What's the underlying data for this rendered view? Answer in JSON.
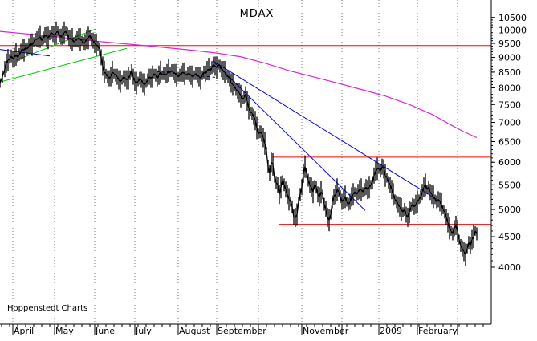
{
  "chart_data": {
    "type": "line",
    "title": "MDAX",
    "credit": "Hoppenstedt Charts",
    "yscale": "log",
    "ylim": [
      3850,
      10900
    ],
    "y_ticks": [
      {
        "v": 10500,
        "label": "10500"
      },
      {
        "v": 10000,
        "label": "10000"
      },
      {
        "v": 9500,
        "label": "9500"
      },
      {
        "v": 9000,
        "label": "9000"
      },
      {
        "v": 8500,
        "label": "8500"
      },
      {
        "v": 8000,
        "label": "8000"
      },
      {
        "v": 7500,
        "label": "7500"
      },
      {
        "v": 7000,
        "label": "7000"
      },
      {
        "v": 6500,
        "label": "6500"
      },
      {
        "v": 6000,
        "label": "6000"
      },
      {
        "v": 5500,
        "label": "5500"
      },
      {
        "v": 5000,
        "label": "5000"
      },
      {
        "v": 4500,
        "label": "4500"
      },
      {
        "v": 4000,
        "label": "4000"
      }
    ],
    "x_months": [
      "April",
      "May",
      "June",
      "July",
      "August",
      "September",
      "",
      "November",
      "",
      "2009",
      "February",
      ""
    ],
    "grid": true,
    "price_series": {
      "name": "",
      "color": "#000000",
      "points": [
        [
          0,
          8150
        ],
        [
          3,
          8350
        ],
        [
          6,
          8600
        ],
        [
          8,
          8800
        ],
        [
          10,
          8900
        ],
        [
          12,
          8950
        ],
        [
          14,
          9050
        ],
        [
          16,
          8950
        ],
        [
          18,
          9000
        ],
        [
          20,
          9100
        ],
        [
          22,
          9000
        ],
        [
          24,
          9100
        ],
        [
          26,
          9200
        ],
        [
          28,
          9300
        ],
        [
          30,
          9250
        ],
        [
          32,
          9350
        ],
        [
          34,
          9300
        ],
        [
          36,
          9400
        ],
        [
          38,
          9500
        ],
        [
          40,
          9450
        ],
        [
          42,
          9550
        ],
        [
          44,
          9650
        ],
        [
          46,
          9650
        ],
        [
          48,
          9700
        ],
        [
          50,
          9750
        ],
        [
          52,
          9600
        ],
        [
          54,
          9700
        ],
        [
          56,
          9800
        ],
        [
          58,
          9750
        ],
        [
          60,
          9700
        ],
        [
          62,
          9800
        ],
        [
          64,
          9900
        ],
        [
          66,
          9850
        ],
        [
          68,
          9800
        ],
        [
          70,
          9900
        ],
        [
          72,
          9950
        ],
        [
          74,
          9800
        ],
        [
          76,
          9750
        ],
        [
          78,
          9800
        ],
        [
          80,
          9900
        ],
        [
          82,
          9950
        ],
        [
          84,
          9850
        ],
        [
          86,
          9700
        ],
        [
          88,
          9650
        ],
        [
          90,
          9650
        ],
        [
          92,
          9550
        ],
        [
          94,
          9600
        ],
        [
          96,
          9650
        ],
        [
          98,
          9700
        ],
        [
          100,
          9650
        ],
        [
          102,
          9600
        ],
        [
          104,
          9500
        ],
        [
          106,
          9550
        ],
        [
          108,
          9650
        ],
        [
          110,
          9700
        ],
        [
          112,
          9800
        ],
        [
          114,
          9650
        ],
        [
          116,
          9600
        ],
        [
          118,
          9500
        ],
        [
          120,
          9450
        ],
        [
          122,
          9400
        ],
        [
          124,
          9300
        ],
        [
          126,
          9000
        ],
        [
          128,
          8700
        ],
        [
          130,
          8500
        ],
        [
          132,
          8450
        ],
        [
          134,
          8350
        ],
        [
          136,
          8300
        ],
        [
          138,
          8350
        ],
        [
          140,
          8500
        ],
        [
          142,
          8450
        ],
        [
          144,
          8400
        ],
        [
          146,
          8350
        ],
        [
          148,
          8250
        ],
        [
          150,
          8200
        ],
        [
          152,
          8250
        ],
        [
          154,
          8350
        ],
        [
          156,
          8300
        ],
        [
          158,
          8250
        ],
        [
          160,
          8300
        ],
        [
          162,
          8400
        ],
        [
          164,
          8550
        ],
        [
          166,
          8350
        ],
        [
          168,
          8200
        ],
        [
          170,
          8150
        ],
        [
          172,
          8200
        ],
        [
          174,
          8300
        ],
        [
          176,
          8250
        ],
        [
          178,
          8150
        ],
        [
          180,
          8100
        ],
        [
          182,
          8150
        ],
        [
          184,
          8250
        ],
        [
          186,
          8350
        ],
        [
          188,
          8300
        ],
        [
          190,
          8350
        ],
        [
          192,
          8450
        ],
        [
          194,
          8400
        ],
        [
          196,
          8300
        ],
        [
          198,
          8400
        ],
        [
          200,
          8500
        ],
        [
          202,
          8400
        ],
        [
          204,
          8450
        ],
        [
          206,
          8400
        ],
        [
          208,
          8450
        ],
        [
          210,
          8550
        ],
        [
          212,
          8500
        ],
        [
          214,
          8550
        ],
        [
          216,
          8500
        ],
        [
          218,
          8450
        ],
        [
          220,
          8400
        ],
        [
          222,
          8350
        ],
        [
          224,
          8400
        ],
        [
          226,
          8450
        ],
        [
          228,
          8500
        ],
        [
          230,
          8450
        ],
        [
          232,
          8400
        ],
        [
          234,
          8450
        ],
        [
          236,
          8450
        ],
        [
          238,
          8400
        ],
        [
          240,
          8350
        ],
        [
          242,
          8400
        ],
        [
          244,
          8450
        ],
        [
          246,
          8400
        ],
        [
          248,
          8350
        ],
        [
          250,
          8300
        ],
        [
          252,
          8400
        ],
        [
          254,
          8500
        ],
        [
          256,
          8450
        ],
        [
          258,
          8550
        ],
        [
          260,
          8600
        ],
        [
          262,
          8550
        ],
        [
          264,
          8650
        ],
        [
          266,
          8750
        ],
        [
          268,
          8700
        ],
        [
          270,
          8650
        ],
        [
          272,
          8750
        ],
        [
          274,
          8700
        ],
        [
          276,
          8600
        ],
        [
          278,
          8550
        ],
        [
          280,
          8500
        ],
        [
          282,
          8400
        ],
        [
          284,
          8350
        ],
        [
          286,
          8300
        ],
        [
          288,
          8150
        ],
        [
          290,
          8100
        ],
        [
          292,
          8050
        ],
        [
          294,
          7950
        ],
        [
          296,
          7900
        ],
        [
          298,
          7850
        ],
        [
          300,
          7750
        ],
        [
          302,
          7650
        ],
        [
          304,
          7700
        ],
        [
          306,
          7800
        ],
        [
          308,
          7600
        ],
        [
          310,
          7400
        ],
        [
          312,
          7300
        ],
        [
          314,
          7250
        ],
        [
          316,
          7150
        ],
        [
          318,
          7050
        ],
        [
          320,
          6850
        ],
        [
          322,
          6700
        ],
        [
          324,
          6750
        ],
        [
          326,
          6700
        ],
        [
          328,
          6600
        ],
        [
          330,
          6450
        ],
        [
          332,
          6250
        ],
        [
          334,
          5900
        ],
        [
          336,
          5750
        ],
        [
          338,
          6000
        ],
        [
          340,
          5950
        ],
        [
          342,
          5650
        ],
        [
          344,
          5550
        ],
        [
          346,
          5500
        ],
        [
          348,
          5300
        ],
        [
          350,
          5450
        ],
        [
          352,
          5600
        ],
        [
          354,
          5500
        ],
        [
          356,
          5400
        ],
        [
          358,
          5300
        ],
        [
          360,
          5200
        ],
        [
          362,
          5150
        ],
        [
          364,
          5050
        ],
        [
          366,
          4850
        ],
        [
          368,
          4850
        ],
        [
          370,
          4900
        ],
        [
          372,
          5150
        ],
        [
          374,
          5300
        ],
        [
          376,
          5450
        ],
        [
          378,
          5750
        ],
        [
          380,
          5900
        ],
        [
          382,
          5750
        ],
        [
          384,
          5600
        ],
        [
          386,
          5500
        ],
        [
          388,
          5450
        ],
        [
          390,
          5350
        ],
        [
          392,
          5500
        ],
        [
          394,
          5450
        ],
        [
          396,
          5300
        ],
        [
          398,
          5250
        ],
        [
          400,
          5350
        ],
        [
          402,
          5300
        ],
        [
          404,
          5100
        ],
        [
          406,
          5000
        ],
        [
          408,
          4850
        ],
        [
          410,
          4800
        ],
        [
          412,
          4900
        ],
        [
          414,
          5150
        ],
        [
          416,
          5250
        ],
        [
          418,
          5300
        ],
        [
          420,
          5400
        ],
        [
          422,
          5350
        ],
        [
          424,
          5250
        ],
        [
          426,
          5150
        ],
        [
          428,
          5200
        ],
        [
          430,
          5250
        ],
        [
          432,
          5150
        ],
        [
          434,
          5100
        ],
        [
          436,
          5150
        ],
        [
          438,
          5250
        ],
        [
          440,
          5300
        ],
        [
          442,
          5350
        ],
        [
          444,
          5300
        ],
        [
          446,
          5350
        ],
        [
          448,
          5400
        ],
        [
          450,
          5400
        ],
        [
          452,
          5350
        ],
        [
          454,
          5400
        ],
        [
          456,
          5450
        ],
        [
          458,
          5400
        ],
        [
          460,
          5450
        ],
        [
          462,
          5500
        ],
        [
          464,
          5550
        ],
        [
          466,
          5700
        ],
        [
          468,
          5800
        ],
        [
          470,
          5850
        ],
        [
          472,
          5850
        ],
        [
          474,
          5800
        ],
        [
          476,
          5900
        ],
        [
          478,
          5850
        ],
        [
          480,
          5700
        ],
        [
          482,
          5650
        ],
        [
          484,
          5550
        ],
        [
          486,
          5500
        ],
        [
          488,
          5400
        ],
        [
          490,
          5300
        ],
        [
          492,
          5200
        ],
        [
          494,
          5150
        ],
        [
          496,
          5100
        ],
        [
          498,
          5050
        ],
        [
          500,
          5000
        ],
        [
          502,
          4950
        ],
        [
          504,
          5000
        ],
        [
          506,
          4900
        ],
        [
          508,
          4850
        ],
        [
          510,
          4950
        ],
        [
          512,
          5050
        ],
        [
          514,
          5100
        ],
        [
          516,
          5050
        ],
        [
          518,
          5100
        ],
        [
          520,
          5150
        ],
        [
          522,
          5200
        ],
        [
          524,
          5250
        ],
        [
          526,
          5350
        ],
        [
          528,
          5450
        ],
        [
          530,
          5500
        ],
        [
          532,
          5400
        ],
        [
          534,
          5450
        ],
        [
          536,
          5350
        ],
        [
          538,
          5300
        ],
        [
          540,
          5250
        ],
        [
          542,
          5200
        ],
        [
          544,
          5150
        ],
        [
          546,
          5200
        ],
        [
          548,
          5150
        ],
        [
          550,
          5100
        ],
        [
          552,
          5000
        ],
        [
          554,
          4950
        ],
        [
          556,
          4850
        ],
        [
          558,
          4750
        ],
        [
          560,
          4650
        ],
        [
          562,
          4600
        ],
        [
          564,
          4550
        ],
        [
          566,
          4650
        ],
        [
          568,
          4700
        ],
        [
          570,
          4600
        ],
        [
          572,
          4450
        ],
        [
          574,
          4350
        ],
        [
          576,
          4300
        ],
        [
          578,
          4250
        ],
        [
          580,
          4200
        ],
        [
          582,
          4300
        ],
        [
          584,
          4400
        ],
        [
          586,
          4350
        ],
        [
          588,
          4450
        ],
        [
          590,
          4500
        ],
        [
          592,
          4600
        ],
        [
          594,
          4550
        ]
      ]
    },
    "moving_average": {
      "name": "",
      "color": "#e020e0",
      "points": [
        [
          0,
          9950
        ],
        [
          60,
          9780
        ],
        [
          120,
          9580
        ],
        [
          180,
          9420
        ],
        [
          240,
          9250
        ],
        [
          270,
          9150
        ],
        [
          300,
          9020
        ],
        [
          330,
          8800
        ],
        [
          360,
          8550
        ],
        [
          390,
          8350
        ],
        [
          420,
          8150
        ],
        [
          450,
          7950
        ],
        [
          480,
          7750
        ],
        [
          510,
          7500
        ],
        [
          540,
          7200
        ],
        [
          560,
          6950
        ],
        [
          578,
          6750
        ],
        [
          594,
          6600
        ]
      ]
    },
    "horizontal_lines": [
      {
        "name": "",
        "color": "#ff0000",
        "y": 9420,
        "x_from": 0,
        "x_to": 669
      },
      {
        "name": "",
        "color": "#ff0000",
        "y": 6120,
        "x_from": 340,
        "x_to": 669
      },
      {
        "name": "",
        "color": "#ff0000",
        "y": 4720,
        "x_from": 348,
        "x_to": 669
      }
    ],
    "trend_lines": [
      {
        "name": "",
        "color": "#00cc00",
        "from": [
          0,
          8180
        ],
        "to": [
          158,
          9320
        ]
      },
      {
        "name": "",
        "color": "#00cc00",
        "from": [
          20,
          8900
        ],
        "to": [
          120,
          10050
        ]
      },
      {
        "name": "",
        "color": "#0000ff",
        "from": [
          0,
          9280
        ],
        "to": [
          62,
          9050
        ]
      },
      {
        "name": "",
        "color": "#0000ff",
        "from": [
          265,
          8880
        ],
        "to": [
          455,
          4980
        ]
      },
      {
        "name": "",
        "color": "#0000ff",
        "from": [
          265,
          8880
        ],
        "to": [
          550,
          5140
        ]
      }
    ],
    "dashed_lines": [
      {
        "name": "",
        "color": "#0000ff",
        "from": [
          195,
          8520
        ],
        "to": [
          268,
          8330
        ]
      }
    ]
  }
}
